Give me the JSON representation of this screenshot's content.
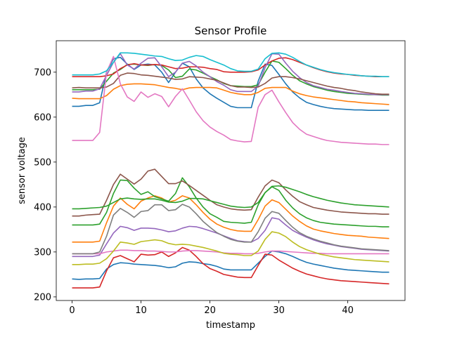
{
  "chart_data": {
    "type": "line",
    "title": "Sensor Profile",
    "xlabel": "timestamp",
    "ylabel": "sensor voltage",
    "xlim": [
      -2.3,
      48.3
    ],
    "ylim": [
      192,
      770
    ],
    "xticks": [
      0,
      10,
      20,
      30,
      40
    ],
    "yticks": [
      200,
      300,
      400,
      500,
      600,
      700
    ],
    "grid": false,
    "legend": "none",
    "x_start": 0,
    "x_step": 1,
    "series": [
      {
        "color": "#1f77b4",
        "values": [
          624,
          624,
          626,
          626,
          632,
          700,
          730,
          733,
          718,
          706,
          716,
          718,
          716,
          700,
          677,
          700,
          720,
          712,
          685,
          665,
          652,
          642,
          633,
          624,
          621,
          621,
          621,
          680,
          718,
          715,
          695,
          674,
          656,
          643,
          633,
          628,
          624,
          621,
          619,
          618,
          617,
          616,
          616,
          615,
          615,
          615,
          615
        ]
      },
      {
        "color": "#ff7f0e",
        "values": [
          642,
          641,
          641,
          641,
          641,
          648,
          662,
          670,
          673,
          674,
          674,
          673,
          672,
          669,
          666,
          664,
          661,
          665,
          666,
          666,
          666,
          665,
          660,
          655,
          652,
          650,
          650,
          655,
          664,
          666,
          666,
          666,
          658,
          652,
          648,
          645,
          643,
          641,
          639,
          637,
          635,
          634,
          632,
          631,
          630,
          629,
          628
        ]
      },
      {
        "color": "#2ca02c",
        "values": [
          661,
          661,
          661,
          661,
          662,
          680,
          698,
          706,
          717,
          718,
          716,
          715,
          717,
          715,
          705,
          688,
          691,
          707,
          705,
          698,
          690,
          683,
          675,
          670,
          669,
          668,
          668,
          672,
          700,
          725,
          722,
          708,
          693,
          681,
          674,
          668,
          664,
          660,
          657,
          655,
          653,
          652,
          651,
          650,
          650,
          649,
          649
        ]
      },
      {
        "color": "#d62728",
        "values": [
          690,
          690,
          690,
          690,
          690,
          692,
          696,
          708,
          716,
          719,
          716,
          716,
          717,
          716,
          712,
          708,
          709,
          712,
          712,
          711,
          708,
          706,
          701,
          700,
          700,
          700,
          701,
          705,
          716,
          725,
          731,
          732,
          728,
          722,
          716,
          710,
          705,
          701,
          698,
          696,
          695,
          693,
          692,
          691,
          690,
          690,
          690
        ]
      },
      {
        "color": "#9467bd",
        "values": [
          656,
          656,
          658,
          658,
          663,
          693,
          722,
          741,
          716,
          707,
          720,
          731,
          732,
          712,
          690,
          700,
          720,
          724,
          714,
          700,
          690,
          679,
          671,
          661,
          657,
          657,
          657,
          669,
          710,
          741,
          740,
          720,
          702,
          688,
          677,
          670,
          666,
          662,
          660,
          657,
          655,
          653,
          652,
          651,
          650,
          650,
          650
        ]
      },
      {
        "color": "#8c564b",
        "values": [
          665,
          666,
          665,
          665,
          665,
          667,
          675,
          693,
          698,
          697,
          694,
          693,
          691,
          689,
          687,
          684,
          685,
          690,
          689,
          688,
          685,
          682,
          676,
          670,
          667,
          667,
          666,
          667,
          675,
          687,
          690,
          690,
          688,
          685,
          681,
          677,
          673,
          669,
          666,
          664,
          661,
          659,
          656,
          654,
          652,
          651,
          651
        ]
      },
      {
        "color": "#e377c2",
        "values": [
          548,
          548,
          548,
          548,
          566,
          700,
          735,
          674,
          645,
          635,
          656,
          644,
          652,
          646,
          623,
          646,
          663,
          638,
          612,
          592,
          578,
          568,
          560,
          550,
          547,
          545,
          546,
          622,
          650,
          660,
          634,
          610,
          588,
          573,
          562,
          557,
          552,
          548,
          546,
          544,
          543,
          542,
          541,
          540,
          540,
          539,
          539
        ]
      },
      {
        "color": "#17becf",
        "values": [
          694,
          694,
          694,
          694,
          696,
          703,
          722,
          743,
          743,
          742,
          740,
          738,
          736,
          735,
          730,
          726,
          727,
          733,
          737,
          735,
          728,
          722,
          716,
          708,
          703,
          702,
          702,
          707,
          730,
          742,
          743,
          740,
          733,
          724,
          716,
          711,
          706,
          702,
          699,
          697,
          695,
          694,
          692,
          691,
          691,
          690,
          690
        ]
      },
      {
        "color": "#1f77b4",
        "values": [
          240,
          239,
          240,
          240,
          241,
          262,
          272,
          276,
          275,
          273,
          272,
          271,
          270,
          268,
          265,
          267,
          275,
          278,
          277,
          274,
          272,
          268,
          262,
          260,
          260,
          260,
          260,
          275,
          290,
          302,
          300,
          296,
          290,
          283,
          277,
          273,
          270,
          267,
          264,
          262,
          260,
          259,
          258,
          257,
          256,
          255,
          255
        ]
      },
      {
        "color": "#ff7f0e",
        "values": [
          322,
          322,
          322,
          322,
          324,
          365,
          402,
          420,
          406,
          396,
          413,
          420,
          425,
          420,
          411,
          415,
          425,
          420,
          405,
          388,
          373,
          362,
          355,
          350,
          347,
          346,
          346,
          372,
          402,
          416,
          410,
          395,
          380,
          368,
          358,
          351,
          347,
          344,
          341,
          339,
          337,
          336,
          335,
          333,
          332,
          331,
          330
        ]
      },
      {
        "color": "#2ca02c",
        "values": [
          360,
          360,
          360,
          360,
          362,
          388,
          430,
          460,
          459,
          442,
          428,
          434,
          423,
          418,
          413,
          430,
          465,
          445,
          420,
          400,
          385,
          377,
          368,
          366,
          365,
          364,
          366,
          405,
          432,
          445,
          437,
          415,
          398,
          385,
          376,
          370,
          366,
          364,
          362,
          361,
          360,
          359,
          358,
          357,
          357,
          356,
          356
        ]
      },
      {
        "color": "#d62728",
        "values": [
          220,
          220,
          220,
          220,
          222,
          258,
          287,
          292,
          285,
          278,
          295,
          293,
          294,
          300,
          290,
          298,
          310,
          304,
          290,
          274,
          263,
          257,
          250,
          247,
          244,
          243,
          243,
          270,
          295,
          293,
          282,
          273,
          264,
          257,
          251,
          247,
          243,
          240,
          238,
          236,
          235,
          234,
          233,
          232,
          231,
          230,
          229
        ]
      },
      {
        "color": "#9467bd",
        "values": [
          290,
          290,
          290,
          290,
          293,
          318,
          342,
          357,
          354,
          348,
          353,
          353,
          352,
          349,
          345,
          347,
          353,
          357,
          356,
          352,
          347,
          342,
          336,
          330,
          325,
          323,
          322,
          330,
          348,
          376,
          373,
          360,
          348,
          340,
          333,
          327,
          322,
          318,
          315,
          312,
          310,
          308,
          306,
          305,
          304,
          303,
          302
        ]
      },
      {
        "color": "#8c564b",
        "values": [
          380,
          380,
          382,
          383,
          384,
          415,
          450,
          473,
          462,
          451,
          462,
          480,
          484,
          468,
          452,
          452,
          458,
          448,
          437,
          426,
          415,
          405,
          400,
          396,
          394,
          393,
          394,
          422,
          447,
          460,
          454,
          438,
          424,
          412,
          405,
          399,
          396,
          393,
          391,
          389,
          388,
          387,
          386,
          385,
          385,
          384,
          384
        ]
      },
      {
        "color": "#e377c2",
        "values": [
          296,
          296,
          296,
          296,
          296,
          300,
          302,
          304,
          304,
          303,
          303,
          302,
          302,
          301,
          300,
          300,
          302,
          303,
          303,
          302,
          301,
          300,
          298,
          297,
          297,
          296,
          296,
          297,
          300,
          302,
          302,
          301,
          300,
          299,
          298,
          297,
          297,
          296,
          296,
          296,
          296,
          296,
          296,
          296,
          296,
          296,
          296
        ]
      },
      {
        "color": "#7f7f7f",
        "values": [
          296,
          296,
          296,
          296,
          300,
          335,
          382,
          397,
          388,
          377,
          390,
          392,
          405,
          405,
          392,
          394,
          406,
          400,
          385,
          368,
          355,
          343,
          335,
          328,
          324,
          322,
          322,
          345,
          375,
          390,
          386,
          370,
          355,
          343,
          335,
          329,
          324,
          320,
          316,
          313,
          311,
          309,
          307,
          306,
          305,
          304,
          303
        ]
      },
      {
        "color": "#bcbd22",
        "values": [
          272,
          272,
          273,
          273,
          275,
          285,
          302,
          322,
          320,
          317,
          323,
          325,
          327,
          325,
          319,
          316,
          317,
          316,
          313,
          310,
          306,
          302,
          297,
          295,
          294,
          292,
          292,
          302,
          328,
          345,
          342,
          334,
          322,
          312,
          305,
          300,
          295,
          292,
          289,
          287,
          285,
          283,
          282,
          281,
          280,
          279,
          278
        ]
      },
      {
        "color": "#2ca02c",
        "values": [
          396,
          396,
          397,
          398,
          399,
          402,
          410,
          418,
          420,
          418,
          417,
          418,
          418,
          415,
          411,
          410,
          413,
          419,
          419,
          418,
          414,
          410,
          406,
          402,
          400,
          399,
          400,
          410,
          432,
          446,
          447,
          444,
          439,
          434,
          428,
          423,
          419,
          415,
          412,
          409,
          407,
          405,
          404,
          403,
          402,
          401,
          400
        ]
      }
    ]
  }
}
